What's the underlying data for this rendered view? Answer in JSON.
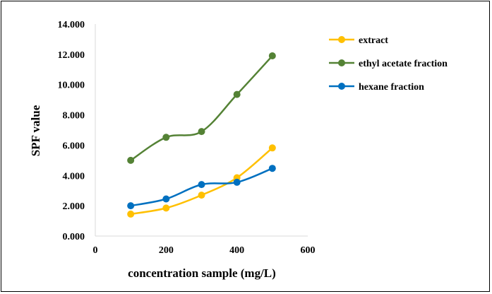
{
  "chart_data": {
    "type": "scatter",
    "xlabel": "concentration sample (mg/L)",
    "ylabel": "SPF value",
    "xlim": [
      0,
      600
    ],
    "ylim": [
      0,
      14
    ],
    "x_ticks": [
      "0",
      "200",
      "400",
      "600"
    ],
    "y_ticks": [
      "0.000",
      "2.000",
      "4.000",
      "6.000",
      "8.000",
      "10.000",
      "12.000",
      "14.000"
    ],
    "grid": false,
    "legend_position": "top-right",
    "series": [
      {
        "name": "extract",
        "color": "#FFC000",
        "x": [
          100,
          200,
          300,
          400,
          500
        ],
        "y": [
          1.45,
          1.85,
          2.7,
          3.85,
          5.82
        ]
      },
      {
        "name": "ethyl acetate fraction",
        "color": "#548235",
        "x": [
          100,
          200,
          300,
          400,
          500
        ],
        "y": [
          5.0,
          6.52,
          6.9,
          9.35,
          11.9
        ]
      },
      {
        "name": "hexane fraction",
        "color": "#0070C0",
        "x": [
          100,
          200,
          300,
          400,
          500
        ],
        "y": [
          2.0,
          2.45,
          3.4,
          3.55,
          4.47
        ]
      }
    ]
  }
}
